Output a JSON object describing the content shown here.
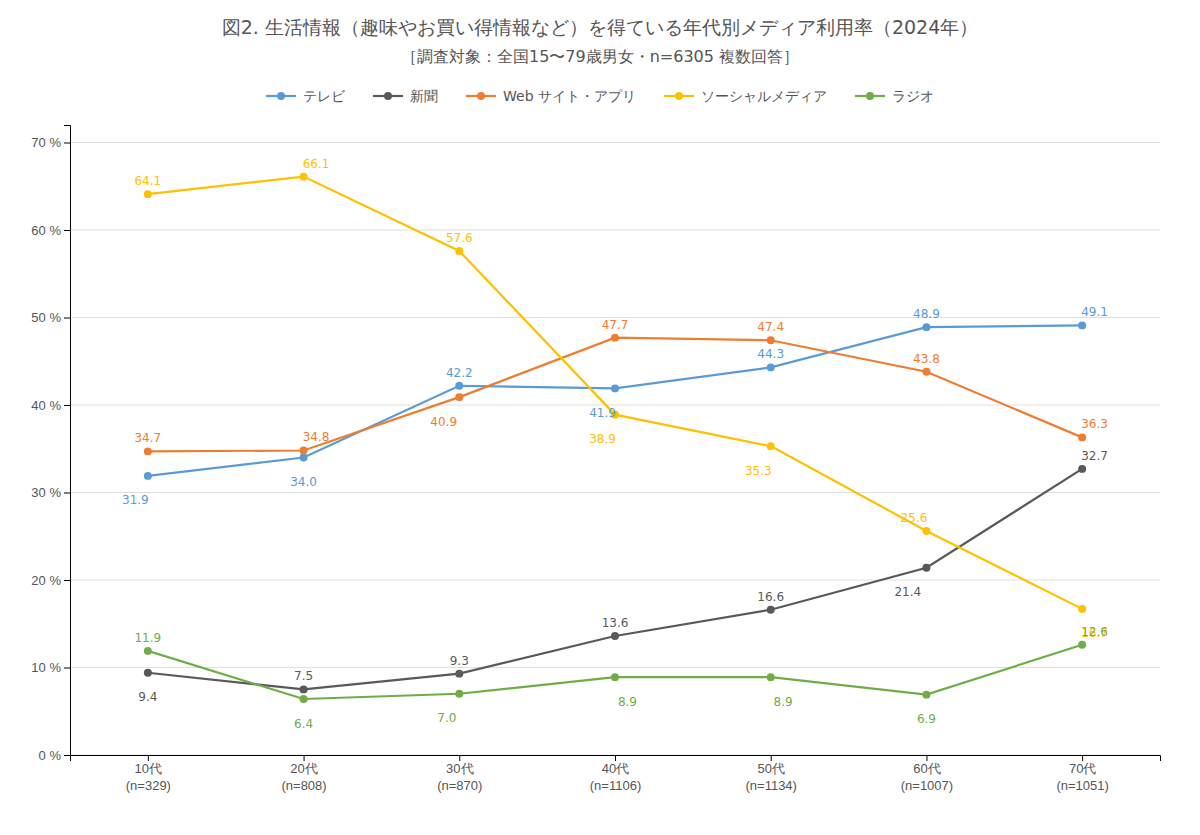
{
  "chart_data": {
    "type": "line",
    "title": "図2. 生活情報（趣味やお買い得情報など）を得ている年代別メディア利用率（2024年）",
    "subtitle": "［調査対象：全国15〜79歳男女・n=6305 複数回答］",
    "categories": [
      "10代\n(n=329)",
      "20代\n(n=808)",
      "30代\n(n=870)",
      "40代\n(n=1106)",
      "50代\n(n=1134)",
      "60代\n(n=1007)",
      "70代\n(n=1051)"
    ],
    "series": [
      {
        "name": "テレビ",
        "color": "#5b9bd5",
        "marker": "circle",
        "values": [
          31.9,
          34.0,
          42.2,
          41.9,
          44.3,
          48.9,
          49.1
        ],
        "value_labels": [
          "31.9",
          "34.0",
          "42.2",
          "41.9",
          "44.3",
          "48.9",
          "49.1"
        ]
      },
      {
        "name": "新聞",
        "color": "#595959",
        "marker": "circle",
        "values": [
          9.4,
          7.5,
          9.3,
          13.6,
          16.6,
          21.4,
          32.7
        ],
        "value_labels": [
          "9.4",
          "7.5",
          "9.3",
          "13.6",
          "16.6",
          "21.4",
          "32.7"
        ]
      },
      {
        "name": "Web サイト・アプリ",
        "color": "#ed7d31",
        "marker": "circle",
        "values": [
          34.7,
          34.8,
          40.9,
          47.7,
          47.4,
          43.8,
          36.3
        ],
        "value_labels": [
          "34.7",
          "34.8",
          "40.9",
          "47.7",
          "47.4",
          "43.8",
          "36.3"
        ]
      },
      {
        "name": "ソーシャルメディア",
        "color": "#ffc000",
        "marker": "circle",
        "values": [
          64.1,
          66.1,
          57.6,
          38.9,
          35.3,
          25.6,
          16.7
        ],
        "value_labels": [
          "64.1",
          "66.1",
          "57.6",
          "38.9",
          "35.3",
          "25.6",
          "16.7"
        ]
      },
      {
        "name": "ラジオ",
        "color": "#70ad47",
        "marker": "circle",
        "values": [
          11.9,
          6.4,
          7.0,
          8.9,
          8.9,
          6.9,
          12.6
        ],
        "value_labels": [
          "11.9",
          "6.4",
          "7.0",
          "8.9",
          "8.9",
          "6.9",
          "12.6"
        ]
      }
    ],
    "ylim": [
      0,
      72
    ],
    "yticks": [
      {
        "value": 0,
        "label": "0 %"
      },
      {
        "value": 10,
        "label": "10 %"
      },
      {
        "value": 20,
        "label": "20 %"
      },
      {
        "value": 30,
        "label": "30 %"
      },
      {
        "value": 40,
        "label": "40 %"
      },
      {
        "value": 50,
        "label": "50 %"
      },
      {
        "value": 60,
        "label": "60 %"
      },
      {
        "value": 70,
        "label": "70 %"
      }
    ],
    "grid": true,
    "legend": "top",
    "data_labels": true
  }
}
